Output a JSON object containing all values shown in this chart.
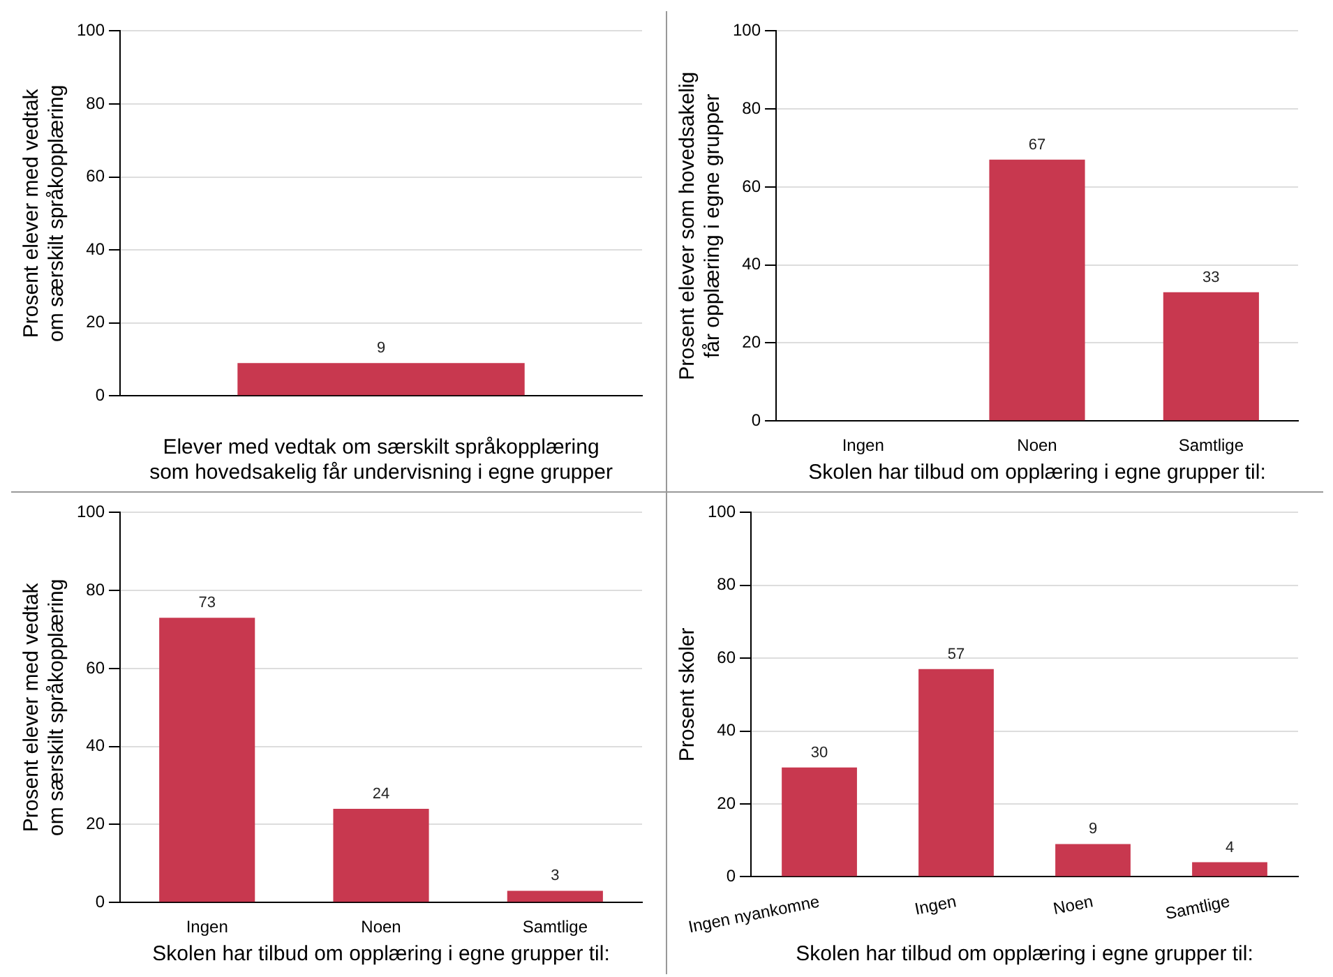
{
  "chart_data": [
    {
      "type": "bar",
      "categories": [
        null
      ],
      "values": [
        9
      ],
      "color": "#c8384f",
      "ylabel": "Prosent elever med vedtak\nom særskilt språkopplæring",
      "xlabel": "Elever med vedtak om særskilt språkopplæring\nsom hovedsakelig får undervisning i egne grupper",
      "ylim": [
        0,
        100
      ],
      "yticks": [
        0,
        20,
        40,
        60,
        80,
        100
      ],
      "grid": "y",
      "data_labels": true
    },
    {
      "type": "bar",
      "categories": [
        "Ingen",
        "Noen",
        "Samtlige"
      ],
      "values": [
        0,
        67,
        33
      ],
      "value_labels": [
        null,
        "67",
        "33"
      ],
      "color": "#c8384f",
      "ylabel": "Prosent elever som hovedsakelig\nfår opplæring i egne grupper",
      "xlabel": "Skolen har tilbud om opplæring i egne grupper til:",
      "ylim": [
        0,
        100
      ],
      "yticks": [
        0,
        20,
        40,
        60,
        80,
        100
      ],
      "grid": "y"
    },
    {
      "type": "bar",
      "categories": [
        "Ingen",
        "Noen",
        "Samtlige"
      ],
      "values": [
        73,
        24,
        3
      ],
      "color": "#c8384f",
      "ylabel": "Prosent elever med vedtak\nom særskilt språkopplæring",
      "xlabel": "Skolen har tilbud om opplæring i egne grupper til:",
      "ylim": [
        0,
        100
      ],
      "yticks": [
        0,
        20,
        40,
        60,
        80,
        100
      ],
      "grid": "y",
      "data_labels": true
    },
    {
      "type": "bar",
      "categories": [
        "Ingen nyankomne",
        "Ingen",
        "Noen",
        "Samtlige"
      ],
      "values": [
        30,
        57,
        9,
        4
      ],
      "color": "#c8384f",
      "ylabel": "Prosent skoler",
      "xlabel": "Skolen har tilbud om opplæring i egne grupper til:",
      "ylim": [
        0,
        100
      ],
      "yticks": [
        0,
        20,
        40,
        60,
        80,
        100
      ],
      "grid": "y",
      "data_labels": true
    }
  ]
}
